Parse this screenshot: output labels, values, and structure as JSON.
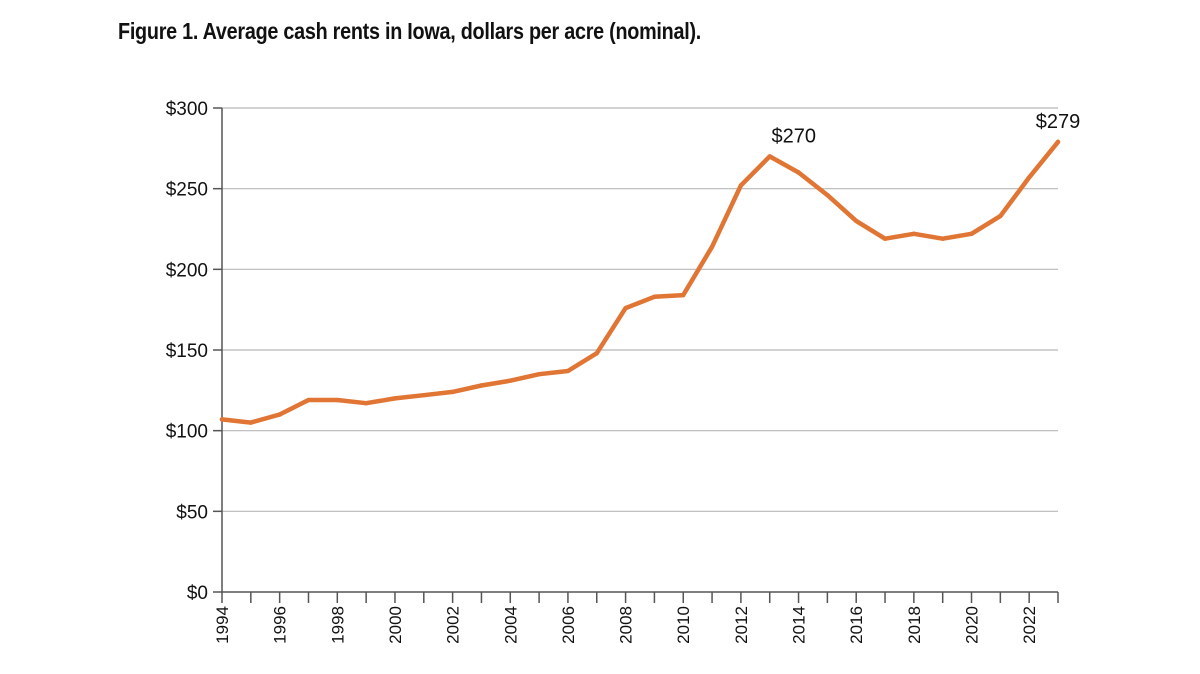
{
  "chart_data": {
    "type": "line",
    "title": "Figure 1. Average cash rents in Iowa, dollars per acre (nominal).",
    "xlabel": "",
    "ylabel": "",
    "ylim": [
      0,
      300
    ],
    "yticks": [
      0,
      50,
      100,
      150,
      200,
      250,
      300
    ],
    "ytick_labels": [
      "$0",
      "$50",
      "$100",
      "$150",
      "$200",
      "$250",
      "$300"
    ],
    "xlim": [
      1994,
      2023
    ],
    "xtick_labels": [
      "1994",
      "1996",
      "1998",
      "2000",
      "2002",
      "2004",
      "2006",
      "2008",
      "2010",
      "2012",
      "2014",
      "2016",
      "2018",
      "2020",
      "2022"
    ],
    "grid": true,
    "line_color": "#E07534",
    "x": [
      1994,
      1995,
      1996,
      1997,
      1998,
      1999,
      2000,
      2001,
      2002,
      2003,
      2004,
      2005,
      2006,
      2007,
      2008,
      2009,
      2010,
      2011,
      2012,
      2013,
      2014,
      2015,
      2016,
      2017,
      2018,
      2019,
      2020,
      2021,
      2022,
      2023
    ],
    "values": [
      107,
      105,
      110,
      119,
      119,
      117,
      120,
      122,
      124,
      128,
      131,
      135,
      137,
      148,
      176,
      183,
      184,
      214,
      252,
      270,
      260,
      246,
      230,
      219,
      222,
      219,
      222,
      233,
      257,
      279
    ],
    "annotations": [
      {
        "x": 2013,
        "y": 270,
        "label": "$270"
      },
      {
        "x": 2023,
        "y": 279,
        "label": "$279"
      }
    ]
  }
}
